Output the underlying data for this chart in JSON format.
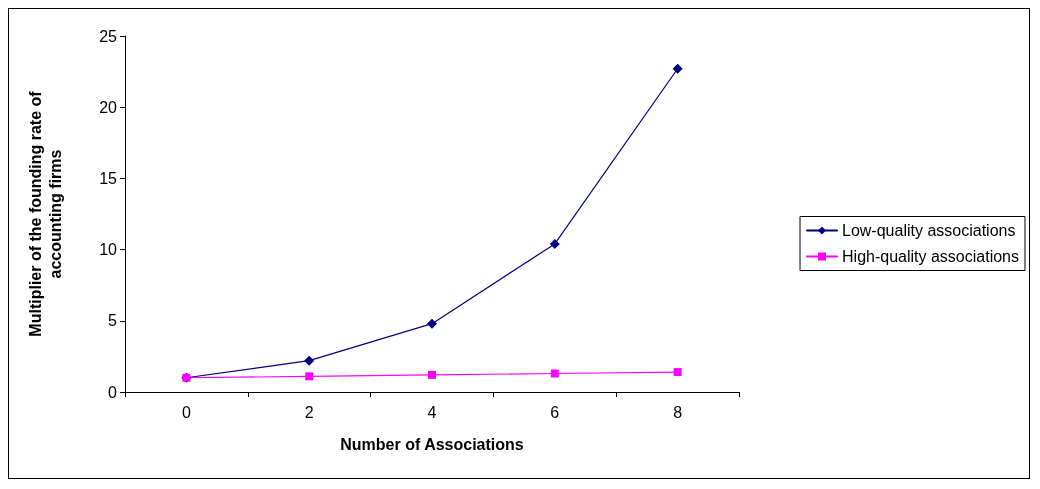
{
  "chart_data": {
    "type": "line",
    "xlabel": "Number of Associations",
    "ylabel": "Multiplier of the founding rate of\naccounting firms",
    "categories": [
      "0",
      "2",
      "4",
      "6",
      "8"
    ],
    "series": [
      {
        "name": "Low-quality associations",
        "color": "#000080",
        "marker": "diamond",
        "values": [
          1,
          2.2,
          4.8,
          10.4,
          22.7
        ]
      },
      {
        "name": "High-quality associations",
        "color": "#ff00ff",
        "marker": "square",
        "values": [
          1,
          1.1,
          1.2,
          1.3,
          1.4
        ]
      }
    ],
    "ylim": [
      0,
      25
    ],
    "yticks": [
      0,
      5,
      10,
      15,
      20,
      25
    ],
    "grid": false,
    "legend": "right",
    "line_style": "solid"
  }
}
